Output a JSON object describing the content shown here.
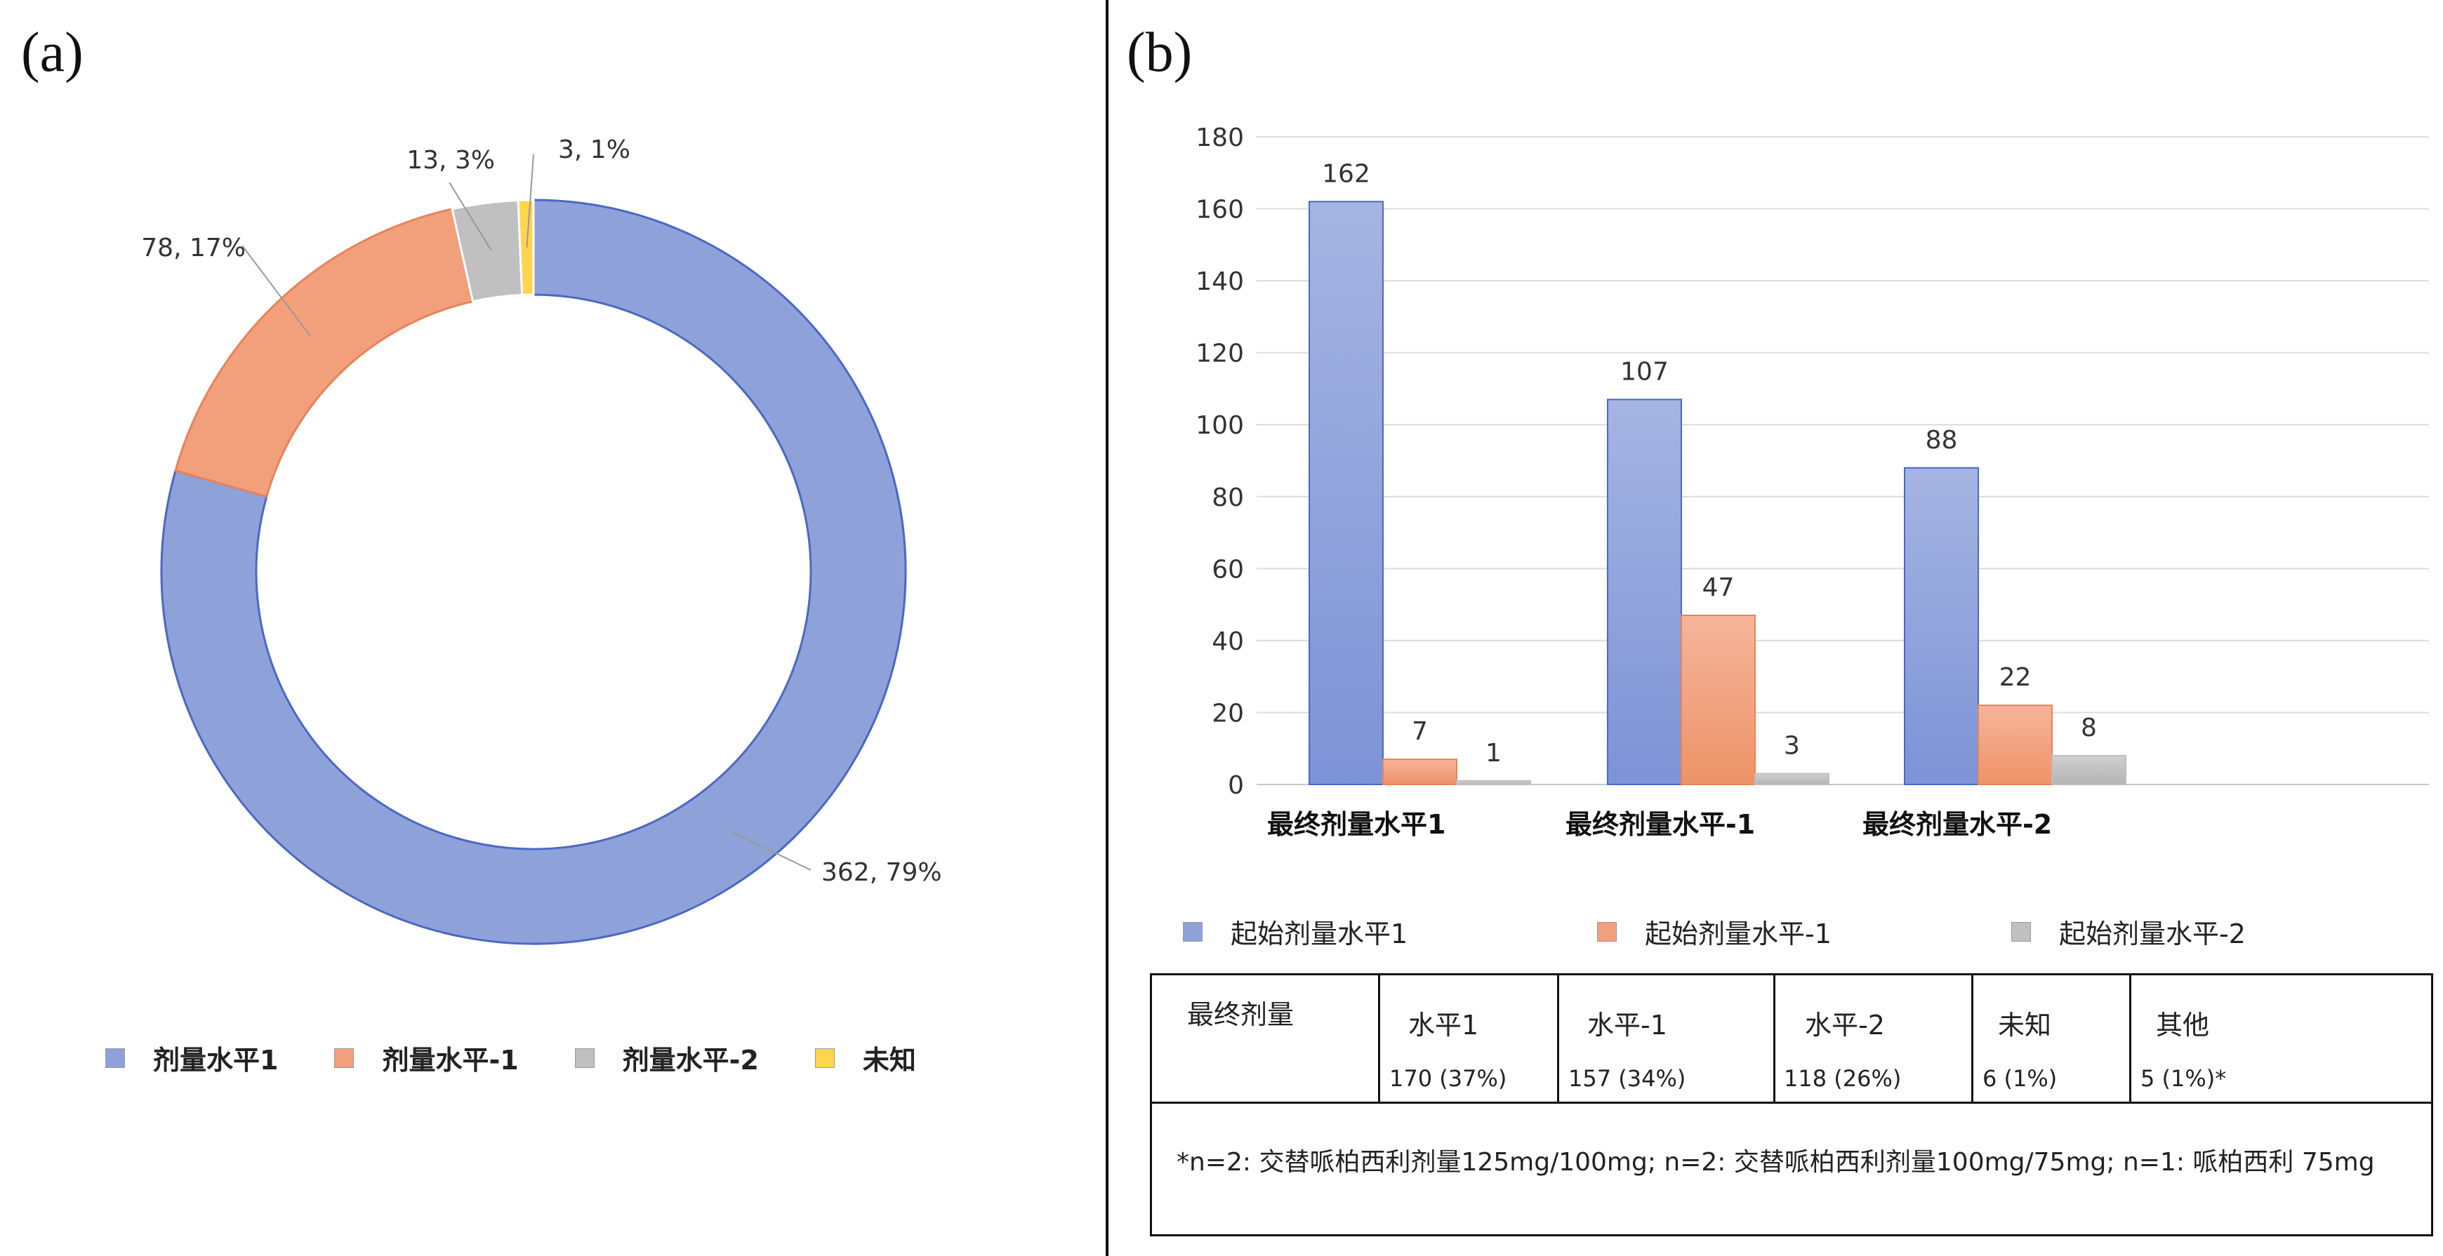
{
  "panel_a": {
    "label": "(a)",
    "legend": [
      {
        "label": "剂量水平1",
        "color": "#8ea1d9"
      },
      {
        "label": "剂量水平-1",
        "color": "#f2a07b"
      },
      {
        "label": "剂量水平-2",
        "color": "#c0c0c0"
      },
      {
        "label": "未知",
        "color": "#ffd54f"
      }
    ]
  },
  "panel_b": {
    "label": "(b)",
    "legend": [
      {
        "label": "起始剂量水平1",
        "color": "#8ea1d9"
      },
      {
        "label": "起始剂量水平-1",
        "color": "#f2a07b"
      },
      {
        "label": "起始剂量水平-2",
        "color": "#c0c0c0"
      }
    ]
  },
  "chart_data": [
    {
      "type": "pie",
      "donut": true,
      "slices": [
        {
          "name": "剂量水平1",
          "value": 362,
          "label": "362, 79%",
          "color": "#8ea1d9"
        },
        {
          "name": "剂量水平-1",
          "value": 78,
          "label": "78, 17%",
          "color": "#f2a07b"
        },
        {
          "name": "剂量水平-2",
          "value": 13,
          "label": "13, 3%",
          "color": "#c0c0c0"
        },
        {
          "name": "未知",
          "value": 3,
          "label": "3, 1%",
          "color": "#ffd54f"
        }
      ],
      "legend_position": "bottom"
    },
    {
      "type": "bar",
      "categories": [
        "最终剂量水平1",
        "最终剂量水平-1",
        "最终剂量水平-2"
      ],
      "series": [
        {
          "name": "起始剂量水平1",
          "values": [
            162,
            107,
            88
          ],
          "color": "#8ea1d9"
        },
        {
          "name": "起始剂量水平-1",
          "values": [
            7,
            47,
            22
          ],
          "color": "#f2a07b"
        },
        {
          "name": "起始剂量水平-2",
          "values": [
            1,
            3,
            8
          ],
          "color": "#c0c0c0"
        }
      ],
      "ylim": [
        0,
        180
      ],
      "yticks": [
        0,
        20,
        40,
        60,
        80,
        100,
        120,
        140,
        160,
        180
      ],
      "grid": true,
      "legend_position": "bottom"
    }
  ],
  "summary_table": {
    "row_header": "最终剂量",
    "columns": [
      "水平1",
      "水平-1",
      "水平-2",
      "未知",
      "其他"
    ],
    "values": [
      "170 (37%)",
      "157 (34%)",
      "118 (26%)",
      "6 (1%)",
      "5 (1%)*"
    ],
    "footnote": "*n=2: 交替哌柏西利剂量125mg/100mg; n=2: 交替哌柏西利剂量100mg/75mg; n=1: 哌柏西利 75mg"
  }
}
